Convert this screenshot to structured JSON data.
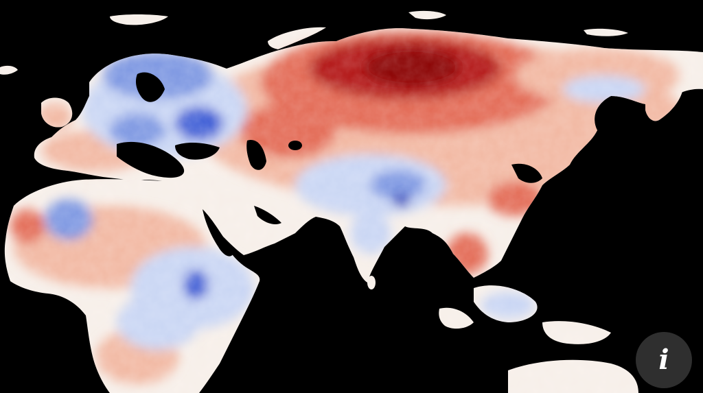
{
  "map": {
    "colors": {
      "ocean": "#000000",
      "neutral": "#f7efe9",
      "warm_light": "#f2b8a2",
      "warm": "#e36b55",
      "hot": "#b31414",
      "hottest": "#8a0000",
      "cool_light": "#c9d6f4",
      "cool": "#7d97e2",
      "cold": "#3f5fd6",
      "coldest": "#1f33b8"
    }
  },
  "info_button": {
    "label": "i",
    "icon": "info-icon"
  }
}
